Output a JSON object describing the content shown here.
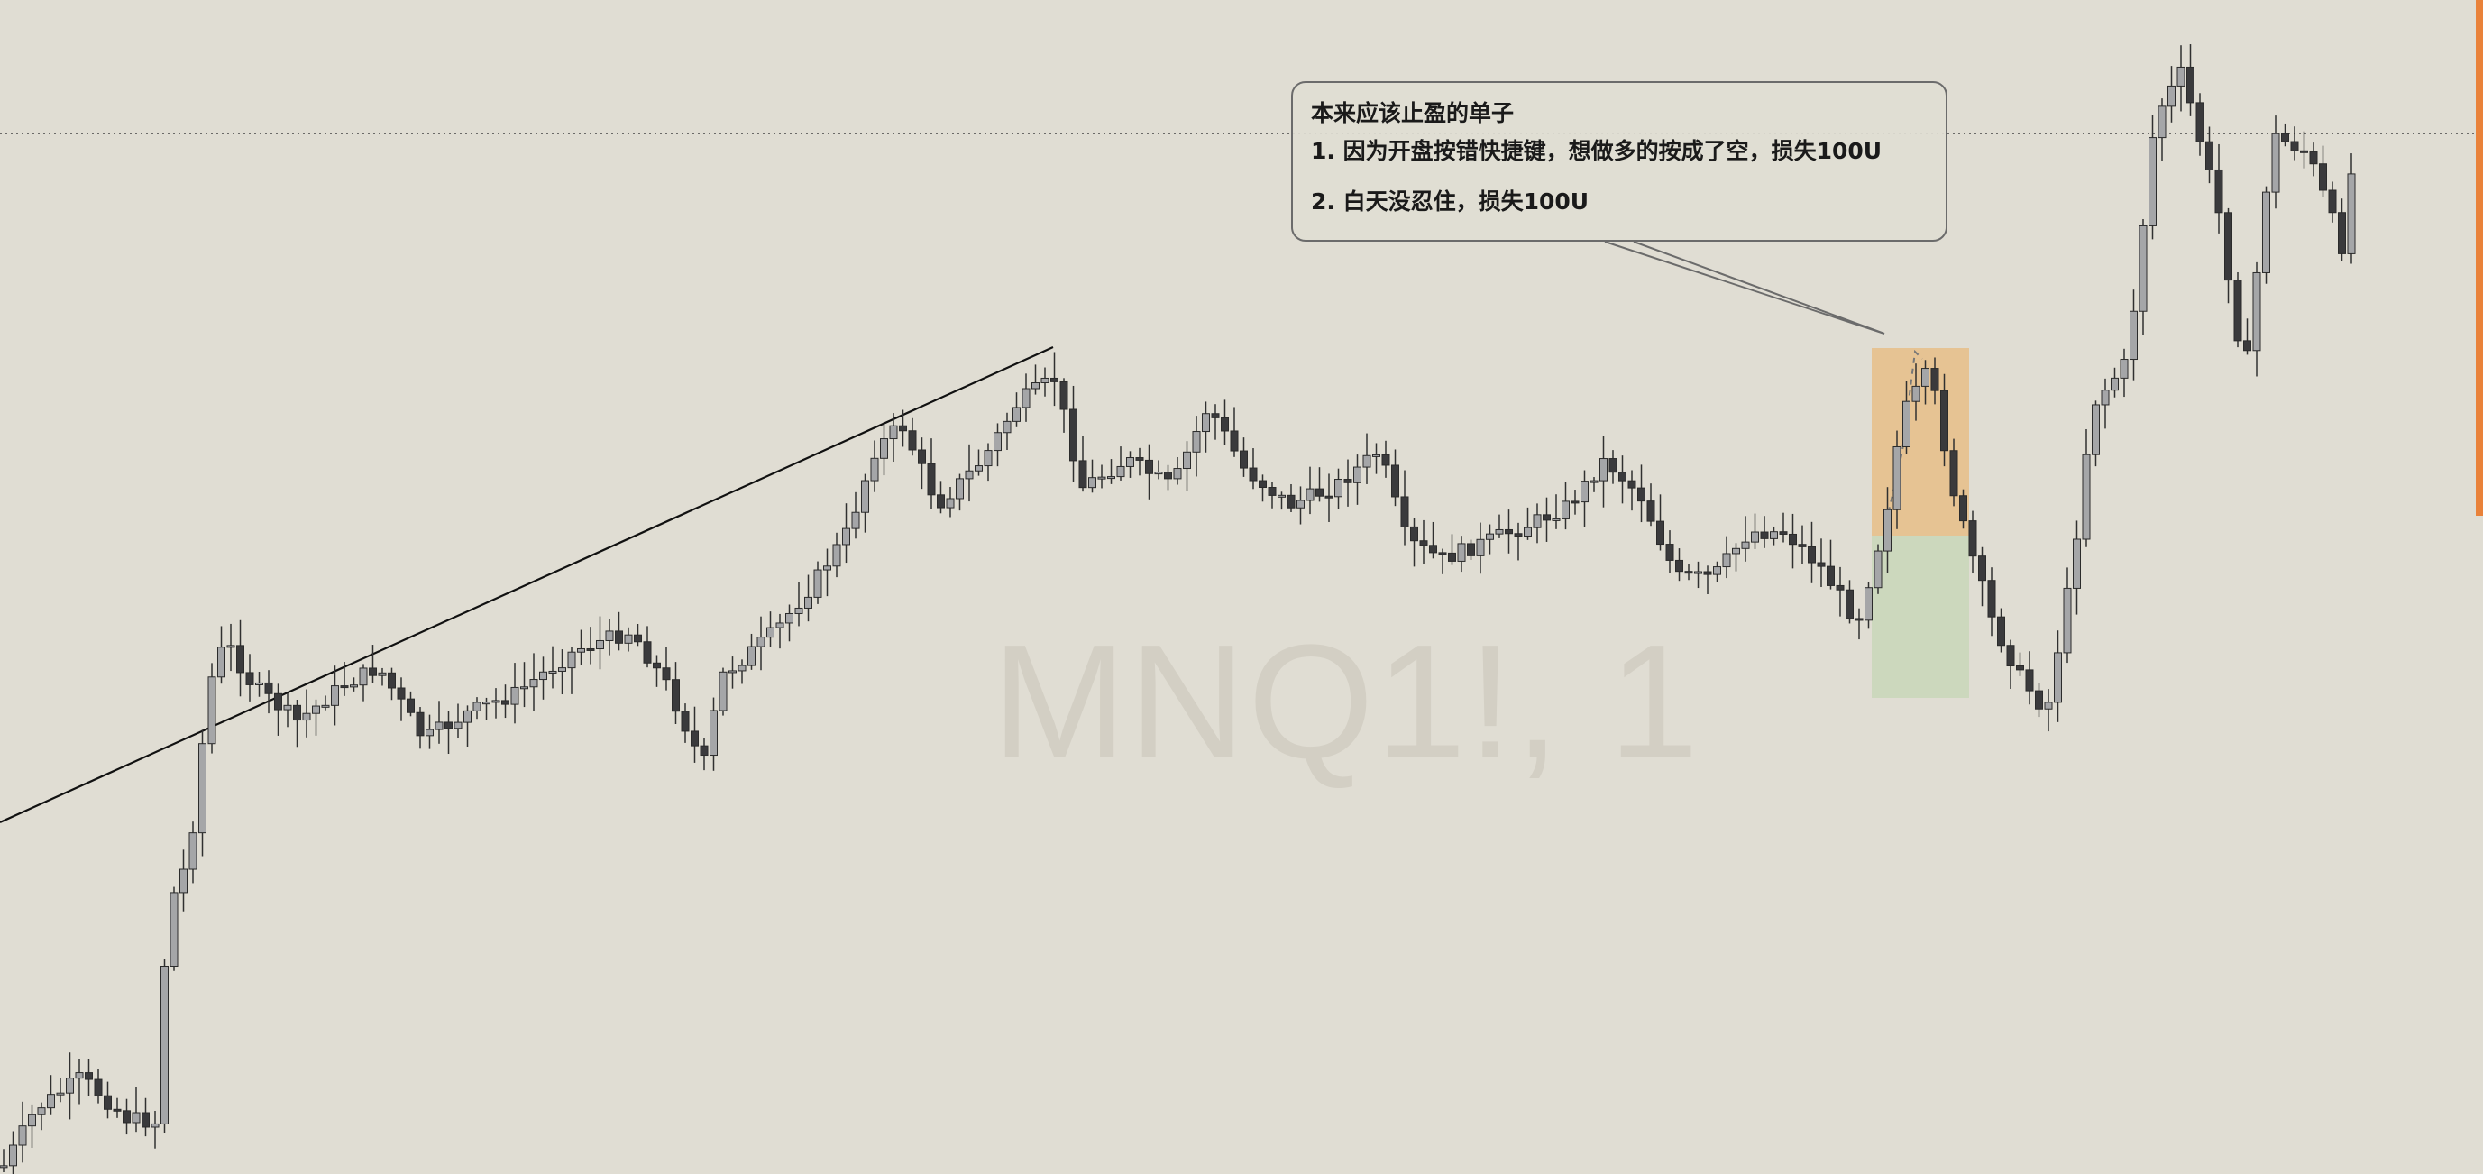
{
  "watermark": {
    "symbol": "MNQ1!, 1"
  },
  "note": {
    "title": "本来应该止盈的单子",
    "lines": [
      "1. 因为开盘按错快捷键，想做多的按成了空，损失100U",
      "2. 白天没忍住，损失100U"
    ]
  },
  "colors": {
    "background": "#e0ddd3",
    "candle_up": "#a5a6a8",
    "candle_down": "#3a3a3c",
    "wick": "#303030",
    "stop_zone": "#e8b97d",
    "target_zone": "#c7d7b8",
    "price_edge_bar": "#e9823a"
  },
  "chart_data": {
    "type": "candlestick"
  }
}
